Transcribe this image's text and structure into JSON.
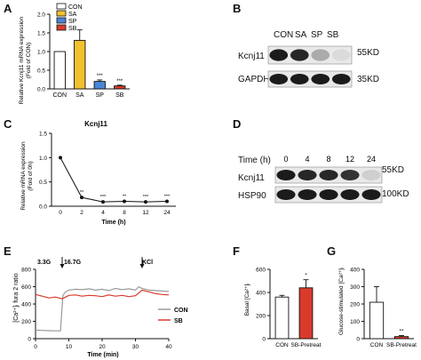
{
  "panels": {
    "A": {
      "letter": "A",
      "ylabel_line1": "Relative Kcnj11 mRNA expression",
      "ylabel_line2": "(Fold of CON)",
      "legend": [
        "CON",
        "SA",
        "SP",
        "SB"
      ],
      "colors": [
        "#ffffff",
        "#f2c12e",
        "#4a86d8",
        "#d93b2b"
      ],
      "sig": [
        "",
        "",
        "***",
        "***"
      ]
    },
    "B": {
      "letter": "B",
      "lanes": [
        "CON",
        "SA",
        "SP",
        "SB"
      ],
      "row1_label": "Kcnj11",
      "row1_marker": "55KD",
      "row2_label": "GAPDH",
      "row2_marker": "35KD",
      "row1_intensity": [
        0.95,
        0.9,
        0.35,
        0.15
      ],
      "row2_intensity": [
        0.95,
        0.95,
        0.95,
        0.95
      ]
    },
    "C": {
      "letter": "C",
      "title": "Kcnj11",
      "ylabel_line1": "Relative mRNA expression",
      "ylabel_line2": "(Fold of 0h)",
      "sig": [
        "",
        "**",
        "***",
        "**",
        "***",
        "***"
      ]
    },
    "D": {
      "letter": "D",
      "time_label": "Time (h)",
      "times": [
        "0",
        "4",
        "8",
        "12",
        "24"
      ],
      "row1_label": "Kcnj11",
      "row1_marker": "55KD",
      "row2_label": "HSP90",
      "row2_marker": "100KD",
      "row1_intensity": [
        0.95,
        0.9,
        0.9,
        0.85,
        0.2
      ],
      "row2_intensity": [
        0.95,
        0.95,
        0.95,
        0.95,
        0.95
      ]
    },
    "E": {
      "letter": "E",
      "ylabel": "[Ca²⁺]ᵢ fura 2 ratio",
      "xlabel": "Time (min)",
      "annot_low": "3.3G",
      "annot_high": "16.7G",
      "annot_kcl": "KCl",
      "legend": [
        "CON",
        "SB"
      ],
      "colors": [
        "#9a9a9a",
        "#d93b2b"
      ]
    },
    "F": {
      "letter": "F",
      "ylabel": "Basal [Ca²⁺]ᵢ",
      "sig": "*",
      "colors": [
        "#ffffff",
        "#d93b2b"
      ]
    },
    "G": {
      "letter": "G",
      "ylabel": "Glucose-stimulated [Ca²⁺]ᵢ",
      "sig": "**",
      "colors": [
        "#ffffff",
        "#d93b2b"
      ]
    }
  },
  "chart_data": [
    {
      "panel": "A",
      "type": "bar",
      "categories": [
        "CON",
        "SA",
        "SP",
        "SB"
      ],
      "values": [
        1.0,
        1.3,
        0.2,
        0.08
      ],
      "errors": [
        0,
        0.28,
        0.04,
        0.02
      ],
      "ylim": [
        0,
        2.0
      ],
      "yticks": [
        0.0,
        0.5,
        1.0,
        1.5,
        2.0
      ],
      "ytick_labels": [
        "0.0",
        "0.5",
        "1.0",
        "1.5",
        "2.0"
      ]
    },
    {
      "panel": "C",
      "type": "line",
      "title": "Kcnj11",
      "xlabel": "Time (h)",
      "x": [
        0,
        2,
        4,
        8,
        12,
        24
      ],
      "x_tick_labels": [
        "0",
        "2",
        "4",
        "8",
        "12",
        "24"
      ],
      "values": [
        1.0,
        0.18,
        0.09,
        0.1,
        0.09,
        0.1
      ],
      "ylim": [
        0,
        1.5
      ],
      "yticks": [
        0.0,
        0.5,
        1.0,
        1.5
      ],
      "ytick_labels": [
        "0.0",
        "0.5",
        "1.0",
        "1.5"
      ]
    },
    {
      "panel": "E",
      "type": "line",
      "xlabel": "Time (min)",
      "xlim": [
        0,
        40
      ],
      "xticks": [
        0,
        10,
        20,
        30,
        40
      ],
      "ylim": [
        0,
        800
      ],
      "yticks": [
        0,
        200,
        400,
        600,
        800
      ],
      "events": [
        {
          "label": "16.7G",
          "x": 8
        },
        {
          "label": "KCl",
          "x": 32
        }
      ],
      "series": [
        {
          "name": "CON",
          "x": [
            0,
            2,
            4,
            6,
            7.5,
            8.2,
            9,
            10,
            12,
            14,
            16,
            18,
            20,
            22,
            24,
            26,
            28,
            30,
            31,
            32,
            33,
            34,
            36,
            38,
            40
          ],
          "values": [
            100,
            95,
            92,
            90,
            90,
            500,
            540,
            560,
            570,
            565,
            575,
            560,
            570,
            555,
            580,
            565,
            575,
            560,
            600,
            580,
            570,
            560,
            555,
            550,
            545
          ]
        },
        {
          "name": "SB",
          "x": [
            0,
            2,
            4,
            6,
            8,
            10,
            12,
            14,
            16,
            18,
            20,
            22,
            24,
            26,
            28,
            30,
            32,
            34,
            36,
            38,
            40
          ],
          "values": [
            510,
            490,
            470,
            480,
            460,
            500,
            505,
            490,
            500,
            495,
            485,
            505,
            490,
            500,
            485,
            495,
            560,
            540,
            520,
            510,
            505
          ]
        }
      ]
    },
    {
      "panel": "F",
      "type": "bar",
      "categories": [
        "CON",
        "SB-Pretreat"
      ],
      "values": [
        360,
        440
      ],
      "errors": [
        15,
        70
      ],
      "ylim": [
        0,
        600
      ],
      "yticks": [
        0,
        200,
        400,
        600
      ]
    },
    {
      "panel": "G",
      "type": "bar",
      "categories": [
        "CON",
        "SB-Pretreat"
      ],
      "values": [
        210,
        12
      ],
      "errors": [
        90,
        6
      ],
      "ylim": [
        0,
        400
      ],
      "yticks": [
        0,
        100,
        200,
        300,
        400
      ]
    }
  ]
}
